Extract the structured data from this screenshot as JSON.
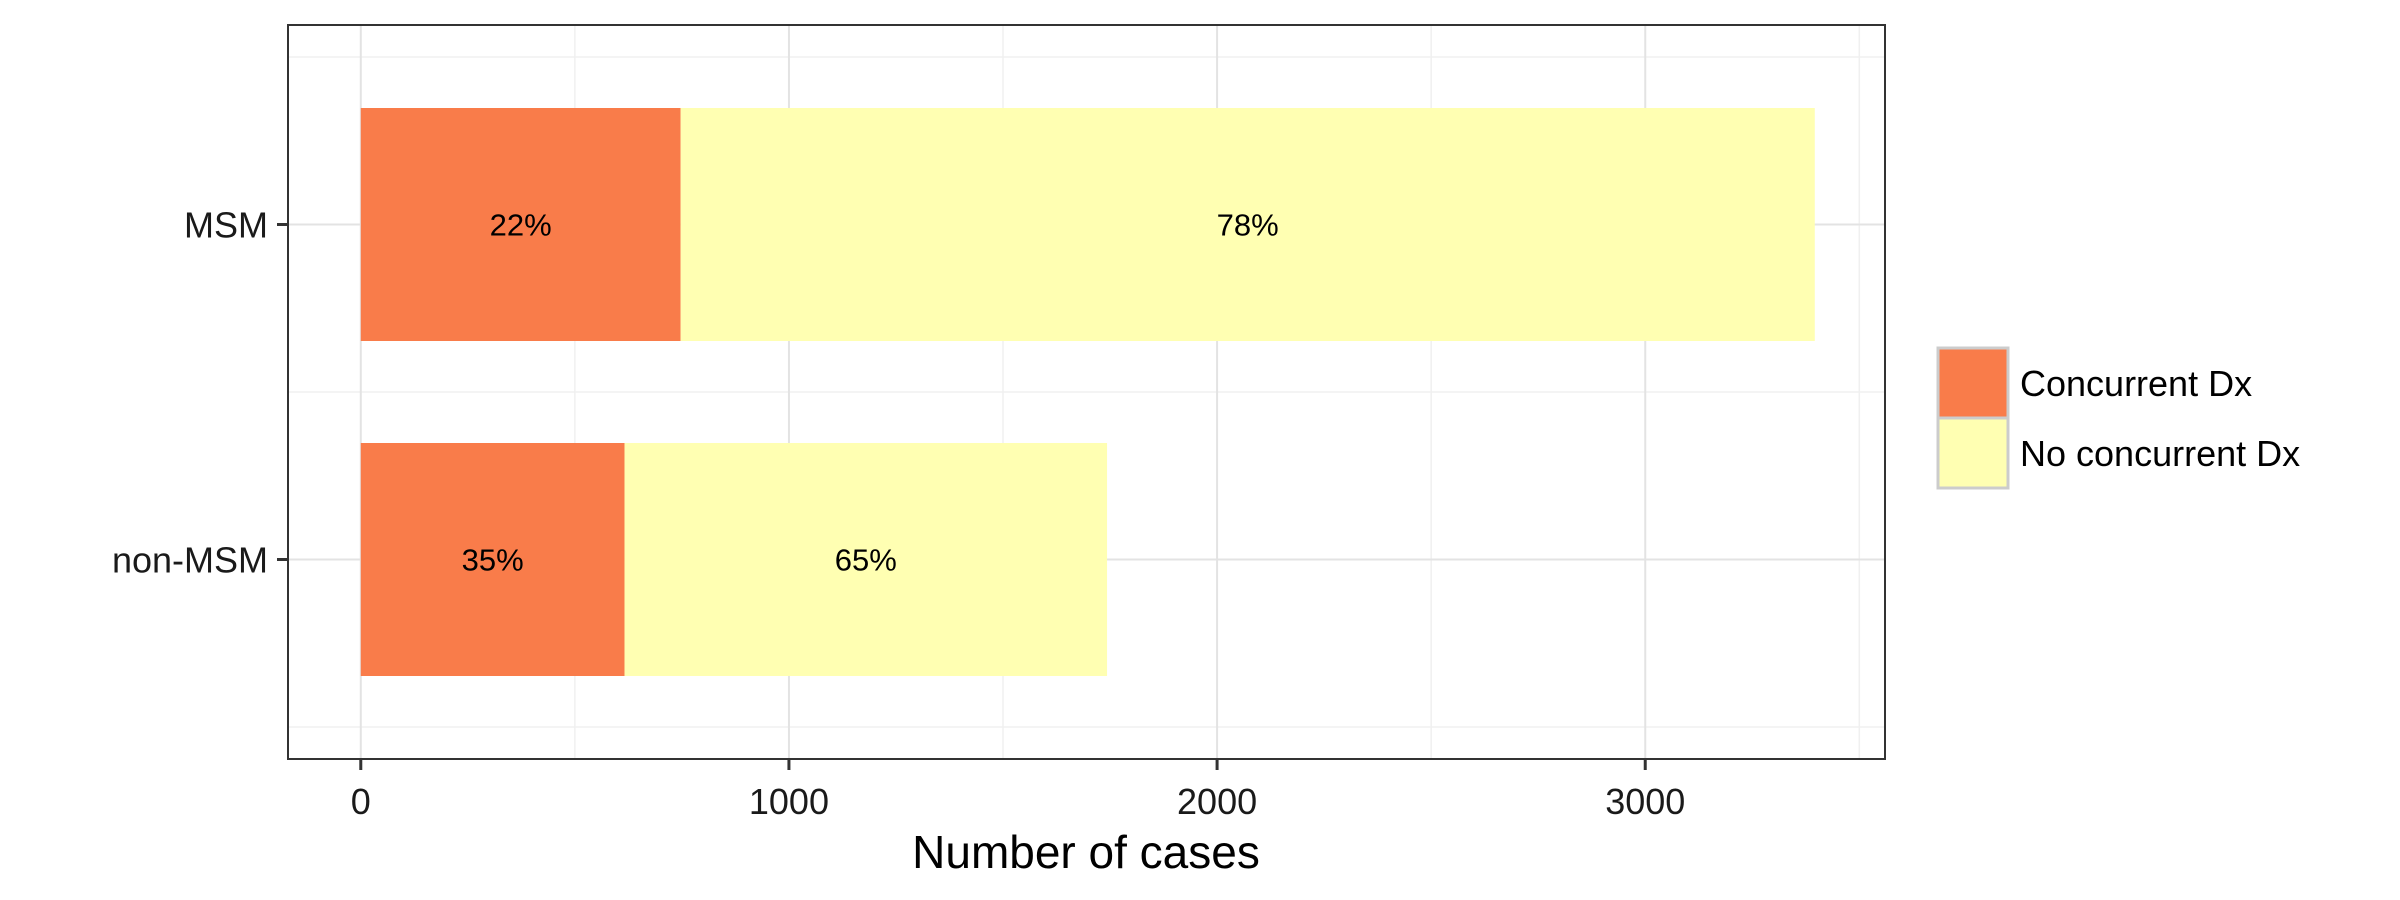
{
  "chart_data": {
    "type": "bar",
    "orientation": "horizontal",
    "stacked": true,
    "categories": [
      "MSM",
      "non-MSM"
    ],
    "series": [
      {
        "name": "Concurrent Dx",
        "values": [
          747,
          616
        ],
        "labels": [
          "22%",
          "35%"
        ],
        "color": "#f97c4a"
      },
      {
        "name": "No concurrent Dx",
        "values": [
          2649,
          1127
        ],
        "labels": [
          "78%",
          "65%"
        ],
        "color": "#ffffb2"
      }
    ],
    "xlabel": "Number of cases",
    "ylabel": "",
    "xlim": [
      -170,
      3560
    ],
    "xticks": [
      0,
      1000,
      2000,
      3000
    ],
    "xtick_labels": [
      "0",
      "1000",
      "2000",
      "3000"
    ],
    "grid": true,
    "legend_position": "right"
  }
}
